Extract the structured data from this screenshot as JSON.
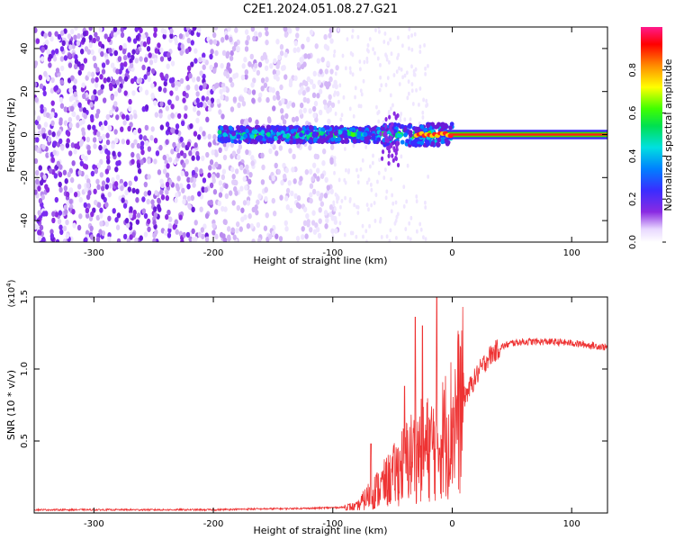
{
  "title": "C2E1.2024.051.08.27.G21",
  "chart_data": [
    {
      "type": "heatmap",
      "xlabel": "Height of straight line (km)",
      "ylabel": "Frequency (Hz)",
      "xlim": [
        -350,
        130
      ],
      "ylim": [
        -50,
        50
      ],
      "xticks": [
        -300,
        -200,
        -100,
        0,
        100
      ],
      "yticks": [
        -40,
        -20,
        0,
        20,
        40
      ],
      "colorbar": {
        "label": "Normalized spectral amplitude",
        "range": [
          0,
          1
        ],
        "ticks": [
          "0.0",
          "0.2",
          "0.4",
          "0.6",
          "0.8"
        ],
        "colormap": "rainbow (white-violet-blue-cyan-green-yellow-red-magenta)"
      },
      "features": {
        "noise_region_x": [
          -350,
          -95
        ],
        "signal_band_center_hz": 0,
        "signal_band_start_x": -195,
        "strong_carrier_start_x": 0
      }
    },
    {
      "type": "line",
      "xlabel": "Height of straight line (km)",
      "ylabel": "SNR (10 * v/v)",
      "y_multiplier_label": "(x10",
      "y_multiplier_exp": "4",
      "y_multiplier_close": ")",
      "xlim": [
        -350,
        130
      ],
      "ylim": [
        0,
        1.5
      ],
      "xticks": [
        -300,
        -200,
        -100,
        0,
        100
      ],
      "yticks": [
        "0.5",
        "1.0",
        "1.5"
      ],
      "series": [
        {
          "color": "#ee3333",
          "profile_x": [
            -350,
            -200,
            -170,
            -120,
            -100,
            -80,
            -70,
            -60,
            -50,
            -40,
            -30,
            -20,
            -10,
            0,
            10,
            20,
            30,
            40,
            50,
            60,
            80,
            100,
            130
          ],
          "profile_y": [
            0.02,
            0.02,
            0.025,
            0.03,
            0.035,
            0.04,
            0.12,
            0.18,
            0.25,
            0.35,
            0.42,
            0.45,
            0.5,
            0.62,
            0.8,
            0.95,
            1.08,
            1.15,
            1.18,
            1.19,
            1.19,
            1.18,
            1.15
          ],
          "peaks": [
            {
              "x": -13,
              "y": 1.5
            },
            {
              "x": -31,
              "y": 1.36
            },
            {
              "x": -25,
              "y": 1.3
            },
            {
              "x": -68,
              "y": 0.48
            },
            {
              "x": -40,
              "y": 0.88
            }
          ]
        }
      ]
    }
  ]
}
